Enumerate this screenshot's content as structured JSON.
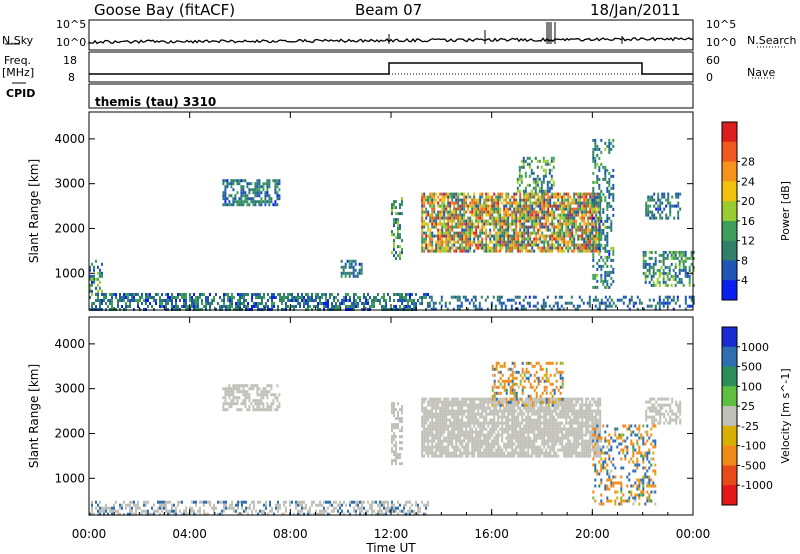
{
  "header": {
    "station": "Goose Bay (fitACF)",
    "beam": "Beam 07",
    "date": "18/Jan/2011"
  },
  "top_panels": {
    "nsky_label": "N.Sky",
    "nsearch_label": "N.Search",
    "noise_ticks_left": [
      "10^5",
      "10^0"
    ],
    "noise_ticks_right": [
      "10^5",
      "10^0"
    ],
    "freq_label_1": "Freq.",
    "freq_label_2": "[MHz]",
    "freq_ticks": [
      "18",
      "8"
    ],
    "nave_label": "Nave",
    "nave_ticks": [
      "60",
      "0"
    ],
    "cpid_label": "CPID",
    "cpid_text": "themis (tau) 3310"
  },
  "colors": {
    "power": [
      "#0a1ef0",
      "#1f55b4",
      "#2f7f6a",
      "#3f9f5a",
      "#9acd32",
      "#f2c20e",
      "#f7921d",
      "#f05a1e",
      "#dc1e1e"
    ],
    "velocity": [
      "#1a2bd0",
      "#2f6fb0",
      "#2e8e5a",
      "#5fc040",
      "#c0c0b8",
      "#d8b000",
      "#f08a1a",
      "#e84a1a",
      "#e01818"
    ]
  },
  "chart_data": [
    {
      "type": "heatmap",
      "title": "",
      "xlabel": "Time UT",
      "ylabel": "Slant Range [km]",
      "x_ticks": [
        "00:00",
        "04:00",
        "08:00",
        "12:00",
        "16:00",
        "20:00",
        "00:00"
      ],
      "xlim_hours": [
        0,
        24
      ],
      "y_ticks": [
        "1000",
        "2000",
        "3000",
        "4000"
      ],
      "ylim": [
        180,
        4600
      ],
      "colorbar_label": "Power [dB]",
      "colorbar_ticks": [
        "4",
        "8",
        "12",
        "16",
        "20",
        "24",
        "28"
      ],
      "crange": [
        0,
        30
      ],
      "regions": [
        {
          "t0": 0.0,
          "t1": 13.5,
          "r0": 200,
          "r1": 560,
          "min": 2,
          "max": 13,
          "density": 0.6
        },
        {
          "t0": 0.0,
          "t1": 0.5,
          "r0": 500,
          "r1": 1300,
          "min": 3,
          "max": 16,
          "density": 0.45
        },
        {
          "t0": 5.3,
          "t1": 7.6,
          "r0": 2500,
          "r1": 3100,
          "min": 3,
          "max": 12,
          "density": 0.6
        },
        {
          "t0": 10.0,
          "t1": 10.8,
          "r0": 950,
          "r1": 1300,
          "min": 3,
          "max": 11,
          "density": 0.6
        },
        {
          "t0": 12.0,
          "t1": 12.4,
          "r0": 1300,
          "r1": 2700,
          "min": 4,
          "max": 15,
          "density": 0.5
        },
        {
          "t0": 13.2,
          "t1": 20.3,
          "r0": 1500,
          "r1": 2800,
          "min": 4,
          "max": 28,
          "density": 0.8
        },
        {
          "t0": 17.0,
          "t1": 18.5,
          "r0": 2800,
          "r1": 3600,
          "min": 4,
          "max": 16,
          "density": 0.45
        },
        {
          "t0": 20.0,
          "t1": 20.8,
          "r0": 700,
          "r1": 4000,
          "min": 3,
          "max": 14,
          "density": 0.35
        },
        {
          "t0": 22.0,
          "t1": 24.0,
          "r0": 700,
          "r1": 1500,
          "min": 4,
          "max": 16,
          "density": 0.5
        },
        {
          "t0": 22.1,
          "t1": 23.5,
          "r0": 2200,
          "r1": 2800,
          "min": 3,
          "max": 12,
          "density": 0.55
        },
        {
          "t0": 13.5,
          "t1": 24.0,
          "r0": 200,
          "r1": 500,
          "min": 3,
          "max": 10,
          "density": 0.35
        }
      ]
    },
    {
      "type": "heatmap",
      "title": "",
      "xlabel": "Time UT",
      "ylabel": "Slant Range [km]",
      "x_ticks": [
        "00:00",
        "04:00",
        "08:00",
        "12:00",
        "16:00",
        "20:00",
        "00:00"
      ],
      "xlim_hours": [
        0,
        24
      ],
      "y_ticks": [
        "1000",
        "2000",
        "3000",
        "4000"
      ],
      "ylim": [
        180,
        4600
      ],
      "colorbar_label": "Velocity [m s^-1]",
      "colorbar_ticks": [
        "1000",
        "500",
        "100",
        "25",
        "-25",
        "-100",
        "-500",
        "-1000"
      ],
      "crange": [
        -1000,
        1000
      ],
      "regions": [
        {
          "t0": 0.0,
          "t1": 13.5,
          "r0": 200,
          "r1": 500,
          "min": -25,
          "max": 25,
          "density": 0.5,
          "accent": 100
        },
        {
          "t0": 5.3,
          "t1": 7.6,
          "r0": 2500,
          "r1": 3100,
          "min": -20,
          "max": 20,
          "density": 0.6
        },
        {
          "t0": 12.0,
          "t1": 12.4,
          "r0": 1300,
          "r1": 2700,
          "min": -20,
          "max": 20,
          "density": 0.5
        },
        {
          "t0": 13.2,
          "t1": 20.3,
          "r0": 1500,
          "r1": 2800,
          "min": -20,
          "max": 20,
          "density": 0.85
        },
        {
          "t0": 16.0,
          "t1": 18.8,
          "r0": 2600,
          "r1": 3600,
          "min": -500,
          "max": 300,
          "density": 0.4
        },
        {
          "t0": 20.0,
          "t1": 22.5,
          "r0": 400,
          "r1": 2200,
          "min": -500,
          "max": 500,
          "density": 0.35
        },
        {
          "t0": 22.1,
          "t1": 23.5,
          "r0": 2200,
          "r1": 2800,
          "min": -20,
          "max": 20,
          "density": 0.5
        }
      ]
    }
  ]
}
